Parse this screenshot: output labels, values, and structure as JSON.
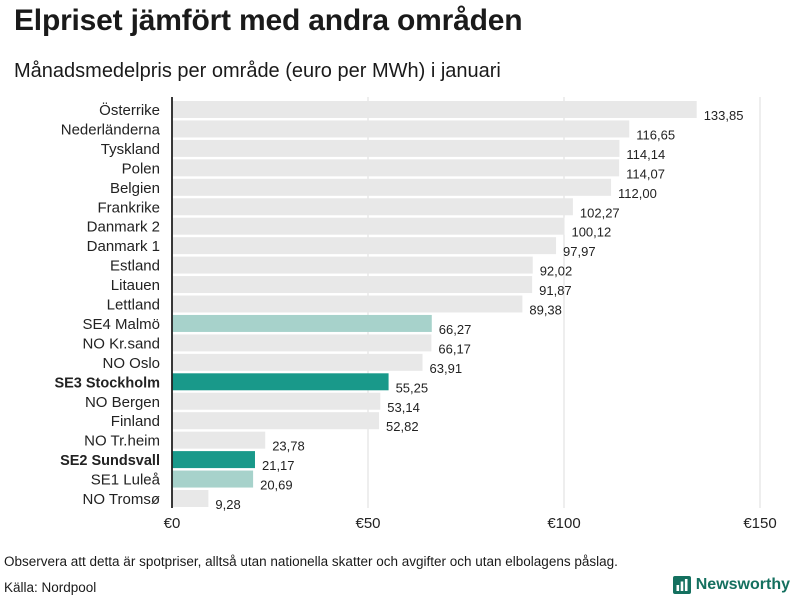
{
  "title": "Elpriset jämfört med andra områden",
  "subtitle": "Månadsmedelpris per område (euro per MWh) i januari",
  "note": "Observera att detta är spotpriser, alltså utan nationella skatter och avgifter och utan elbolagens påslag.",
  "source": "Källa: Nordpool",
  "brand": "Newsworthy",
  "colors": {
    "bar_default": "#e8e8e8",
    "bar_light": "#a7d2cb",
    "bar_dark": "#19998a",
    "grid": "#dddddd",
    "axis": "#222222",
    "brand": "#14705f"
  },
  "chart_data": {
    "type": "bar",
    "orientation": "horizontal",
    "title": "Elpriset jämfört med andra områden",
    "subtitle": "Månadsmedelpris per område (euro per MWh) i januari",
    "xlabel": "",
    "ylabel": "",
    "xlim": [
      0,
      150
    ],
    "ticks": [
      0,
      50,
      100,
      150
    ],
    "tick_labels": [
      "€0",
      "€50",
      "€100",
      "€150"
    ],
    "grid": true,
    "categories": [
      "Österrike",
      "Nederländerna",
      "Tyskland",
      "Polen",
      "Belgien",
      "Frankrike",
      "Danmark  2",
      "Danmark  1",
      "Estland",
      "Litauen",
      "Lettland",
      "SE4  Malmö",
      "NO Kr.sand",
      "NO Oslo",
      "SE3 Stockholm",
      "NO Bergen",
      "Finland",
      "NO Tr.heim",
      "SE2 Sundsvall",
      "SE1  Luleå",
      "NO Tromsø"
    ],
    "values": [
      133.85,
      116.65,
      114.14,
      114.07,
      112.0,
      102.27,
      100.12,
      97.97,
      92.02,
      91.87,
      89.38,
      66.27,
      66.17,
      63.91,
      55.25,
      53.14,
      52.82,
      23.78,
      21.17,
      20.69,
      9.28
    ],
    "value_labels": [
      "133,85",
      "116,65",
      "114,14",
      "114,07",
      "112,00",
      "102,27",
      "100,12",
      "97,97",
      "92,02",
      "91,87",
      "89,38",
      "66,27",
      "66,17",
      "63,91",
      "55,25",
      "53,14",
      "52,82",
      "23,78",
      "21,17",
      "20,69",
      "9,28"
    ],
    "highlight": [
      "default",
      "default",
      "default",
      "default",
      "default",
      "default",
      "default",
      "default",
      "default",
      "default",
      "default",
      "light",
      "default",
      "default",
      "dark",
      "default",
      "default",
      "default",
      "dark",
      "light",
      "default"
    ],
    "bold_labels": [
      "SE3 Stockholm",
      "SE2 Sundsvall"
    ]
  }
}
